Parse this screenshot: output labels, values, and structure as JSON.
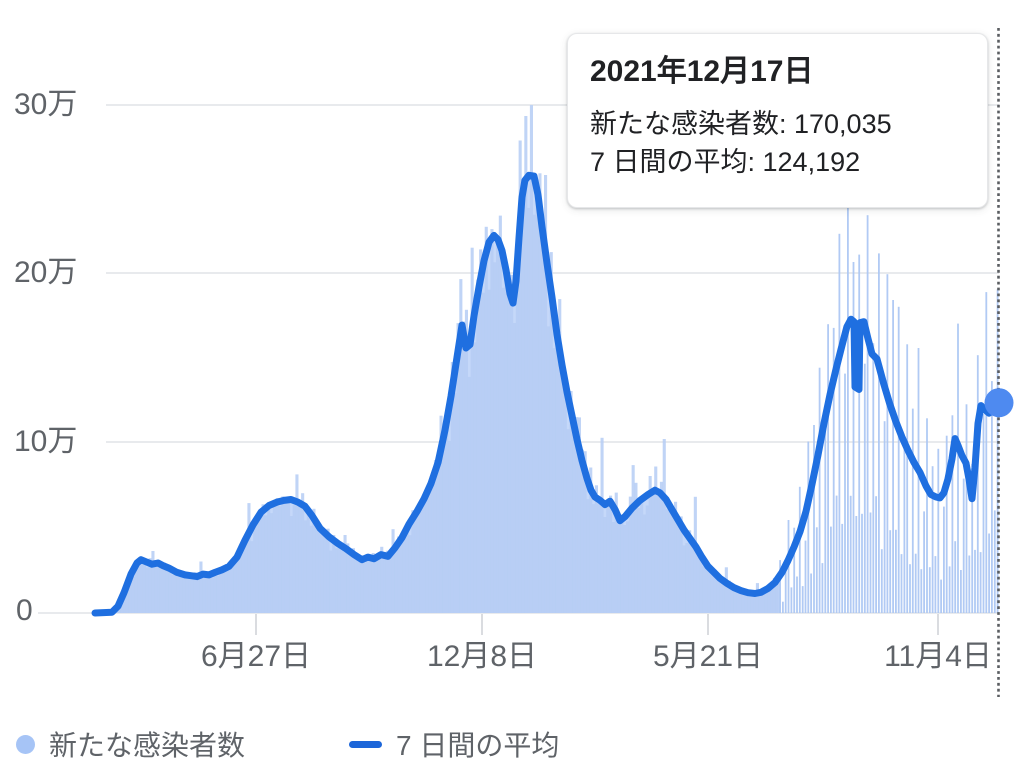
{
  "tooltip": {
    "date": "2021年12月17日",
    "new_cases_row": "新たな感染者数: 170,035",
    "avg_row": "7 日間の平均: 124,192"
  },
  "y_axis": {
    "labels": [
      "30万",
      "20万",
      "10万",
      "0"
    ],
    "tick_values": [
      300000,
      200000,
      100000,
      0
    ]
  },
  "x_axis": {
    "labels": [
      "6月27日",
      "12月8日",
      "5月21日",
      "11月4日"
    ]
  },
  "legend": {
    "new_cases_label": "新たな感染者数",
    "avg_label": "7 日間の平均"
  },
  "colors": {
    "line": "#1f6fe0",
    "bars": "#b5ccf4",
    "bars_comb": "#adc7f3",
    "area": "#c5d8f9",
    "marker": "#4e8af0",
    "axis_text": "#5f6368",
    "grid": "#e8eaed",
    "dotted_line": "#5a5d61"
  },
  "chart_data": {
    "type": "bar",
    "title": "",
    "xlabel": "",
    "ylabel": "",
    "ylim": [
      0,
      300000
    ],
    "y_tick_values": [
      0,
      100000,
      200000,
      300000
    ],
    "y_tick_labels": [
      "0",
      "10万",
      "20万",
      "30万"
    ],
    "x_tick_labels": [
      "6月27日",
      "12月8日",
      "5月21日",
      "11月4日"
    ],
    "x_tick_positions": [
      0.1781,
      0.4281,
      0.6781,
      0.9325
    ],
    "legend_entries": [
      "新たな感染者数",
      "7 日間の平均"
    ],
    "legend_position": "bottom",
    "grid": true,
    "selected_point": {
      "date": "2021年12月17日",
      "new_cases": 170035,
      "seven_day_avg": 124192,
      "t": 1.0
    },
    "series": [
      {
        "name": "新たな感染者数",
        "render": "daily-bars-derived-from-avg"
      },
      {
        "name": "7 日間の平均",
        "render": "line"
      }
    ],
    "avg_points": [
      [
        0.0,
        0
      ],
      [
        0.0188,
        500
      ],
      [
        0.0254,
        4000
      ],
      [
        0.0321,
        12000
      ],
      [
        0.0398,
        23000
      ],
      [
        0.0465,
        29500
      ],
      [
        0.0509,
        31500
      ],
      [
        0.0575,
        30000
      ],
      [
        0.0631,
        28800
      ],
      [
        0.0697,
        29500
      ],
      [
        0.0752,
        28000
      ],
      [
        0.0819,
        26500
      ],
      [
        0.0907,
        24000
      ],
      [
        0.0996,
        22500
      ],
      [
        0.1062,
        22000
      ],
      [
        0.1128,
        21500
      ],
      [
        0.1195,
        23000
      ],
      [
        0.1261,
        22500
      ],
      [
        0.1327,
        24000
      ],
      [
        0.1405,
        25500
      ],
      [
        0.1482,
        27500
      ],
      [
        0.1571,
        33000
      ],
      [
        0.1659,
        43000
      ],
      [
        0.1748,
        52000
      ],
      [
        0.1836,
        59500
      ],
      [
        0.1925,
        63500
      ],
      [
        0.2013,
        65500
      ],
      [
        0.2091,
        66500
      ],
      [
        0.2168,
        67000
      ],
      [
        0.2245,
        65500
      ],
      [
        0.2323,
        63000
      ],
      [
        0.24,
        57500
      ],
      [
        0.2489,
        50000
      ],
      [
        0.2588,
        45000
      ],
      [
        0.2688,
        41000
      ],
      [
        0.2777,
        38000
      ],
      [
        0.2865,
        34500
      ],
      [
        0.2954,
        31500
      ],
      [
        0.302,
        33000
      ],
      [
        0.3086,
        32000
      ],
      [
        0.3164,
        34500
      ],
      [
        0.3241,
        33500
      ],
      [
        0.3319,
        38500
      ],
      [
        0.3396,
        44500
      ],
      [
        0.3474,
        52500
      ],
      [
        0.3562,
        60000
      ],
      [
        0.364,
        67500
      ],
      [
        0.3717,
        76500
      ],
      [
        0.3795,
        89000
      ],
      [
        0.3872,
        108000
      ],
      [
        0.3938,
        128000
      ],
      [
        0.4004,
        151000
      ],
      [
        0.406,
        170000
      ],
      [
        0.4104,
        156500
      ],
      [
        0.4148,
        158500
      ],
      [
        0.4192,
        175500
      ],
      [
        0.4248,
        192500
      ],
      [
        0.4303,
        208000
      ],
      [
        0.4358,
        219000
      ],
      [
        0.4413,
        223000
      ],
      [
        0.4458,
        220500
      ],
      [
        0.4502,
        214000
      ],
      [
        0.4546,
        202500
      ],
      [
        0.4591,
        188500
      ],
      [
        0.4624,
        183000
      ],
      [
        0.4657,
        196000
      ],
      [
        0.469,
        221500
      ],
      [
        0.4723,
        245500
      ],
      [
        0.4756,
        255500
      ],
      [
        0.48,
        258500
      ],
      [
        0.4856,
        258000
      ],
      [
        0.49,
        247000
      ],
      [
        0.4944,
        228500
      ],
      [
        0.5,
        206500
      ],
      [
        0.5055,
        186500
      ],
      [
        0.5111,
        164500
      ],
      [
        0.5166,
        146500
      ],
      [
        0.5221,
        130500
      ],
      [
        0.5277,
        116500
      ],
      [
        0.5332,
        102500
      ],
      [
        0.5387,
        90000
      ],
      [
        0.5443,
        79500
      ],
      [
        0.5487,
        72500
      ],
      [
        0.5531,
        68500
      ],
      [
        0.5587,
        66500
      ],
      [
        0.5642,
        64000
      ],
      [
        0.5697,
        66000
      ],
      [
        0.5753,
        61000
      ],
      [
        0.5808,
        54500
      ],
      [
        0.5864,
        57000
      ],
      [
        0.5941,
        62000
      ],
      [
        0.6029,
        66500
      ],
      [
        0.6118,
        70000
      ],
      [
        0.6195,
        72500
      ],
      [
        0.625,
        71000
      ],
      [
        0.6317,
        67000
      ],
      [
        0.6383,
        61000
      ],
      [
        0.6449,
        55000
      ],
      [
        0.6515,
        49000
      ],
      [
        0.6582,
        44000
      ],
      [
        0.6648,
        39000
      ],
      [
        0.6714,
        33000
      ],
      [
        0.6781,
        27500
      ],
      [
        0.6847,
        24000
      ],
      [
        0.6913,
        20500
      ],
      [
        0.6991,
        17500
      ],
      [
        0.7068,
        15000
      ],
      [
        0.7146,
        13200
      ],
      [
        0.7223,
        12000
      ],
      [
        0.7301,
        11500
      ],
      [
        0.7367,
        12200
      ],
      [
        0.7445,
        14500
      ],
      [
        0.7522,
        18000
      ],
      [
        0.76,
        24000
      ],
      [
        0.7666,
        31000
      ],
      [
        0.7732,
        39000
      ],
      [
        0.7799,
        48000
      ],
      [
        0.7865,
        60000
      ],
      [
        0.7931,
        76000
      ],
      [
        0.7997,
        93000
      ],
      [
        0.8064,
        112000
      ],
      [
        0.813,
        129000
      ],
      [
        0.8197,
        144000
      ],
      [
        0.8263,
        158000
      ],
      [
        0.8318,
        169000
      ],
      [
        0.8363,
        173500
      ],
      [
        0.8396,
        172000
      ],
      [
        0.8407,
        133500
      ],
      [
        0.8451,
        132000
      ],
      [
        0.8462,
        171500
      ],
      [
        0.8506,
        172000
      ],
      [
        0.8551,
        162000
      ],
      [
        0.8595,
        153000
      ],
      [
        0.865,
        150000
      ],
      [
        0.8727,
        135000
      ],
      [
        0.8794,
        123000
      ],
      [
        0.886,
        113000
      ],
      [
        0.8926,
        104000
      ],
      [
        0.8993,
        96000
      ],
      [
        0.9059,
        89000
      ],
      [
        0.9126,
        83000
      ],
      [
        0.9192,
        75000
      ],
      [
        0.9247,
        70000
      ],
      [
        0.9303,
        68500
      ],
      [
        0.9347,
        68000
      ],
      [
        0.9391,
        71000
      ],
      [
        0.9435,
        79000
      ],
      [
        0.948,
        91000
      ],
      [
        0.9513,
        103000
      ],
      [
        0.9546,
        99000
      ],
      [
        0.959,
        93000
      ],
      [
        0.9635,
        88500
      ],
      [
        0.9668,
        79000
      ],
      [
        0.9701,
        67500
      ],
      [
        0.9735,
        86000
      ],
      [
        0.9768,
        112000
      ],
      [
        0.9801,
        122500
      ],
      [
        0.9845,
        120000
      ],
      [
        0.9889,
        118000
      ],
      [
        0.9933,
        120500
      ],
      [
        1.0,
        124192
      ]
    ],
    "bar_pattern": {
      "bar_count": 320,
      "area_fill_until_t": 0.7578,
      "eras": [
        {
          "to": 0.3706,
          "weights": [
            1.04,
            0.96,
            1.01,
            1.07,
            0.94,
            1.03,
            0.9
          ],
          "spike_every": 17,
          "spike_mult": 1.32,
          "cap_above_avg": 35000,
          "solid": true
        },
        {
          "to": 0.55,
          "weights": [
            1.1,
            0.93,
            1.05,
            1.15,
            0.97,
            1.07,
            0.86
          ],
          "spike_every": 13,
          "spike_mult": 1.2,
          "cap_above_avg": 48000,
          "solid": true
        },
        {
          "to": 0.7578,
          "weights": [
            1.06,
            0.93,
            1.12,
            0.97,
            1.05,
            0.88,
            0.95
          ],
          "spike_every": 11,
          "spike_mult": 1.6,
          "cap_above_avg": 55000,
          "solid": true
        },
        {
          "to": 1.01,
          "weights": [
            1.55,
            0.35,
            1.22,
            0.45,
            1.6,
            0.3,
            0.85
          ],
          "spike_every": 9,
          "spike_mult": 1.14,
          "cap_above_avg": 72000,
          "solid": false
        }
      ]
    }
  }
}
